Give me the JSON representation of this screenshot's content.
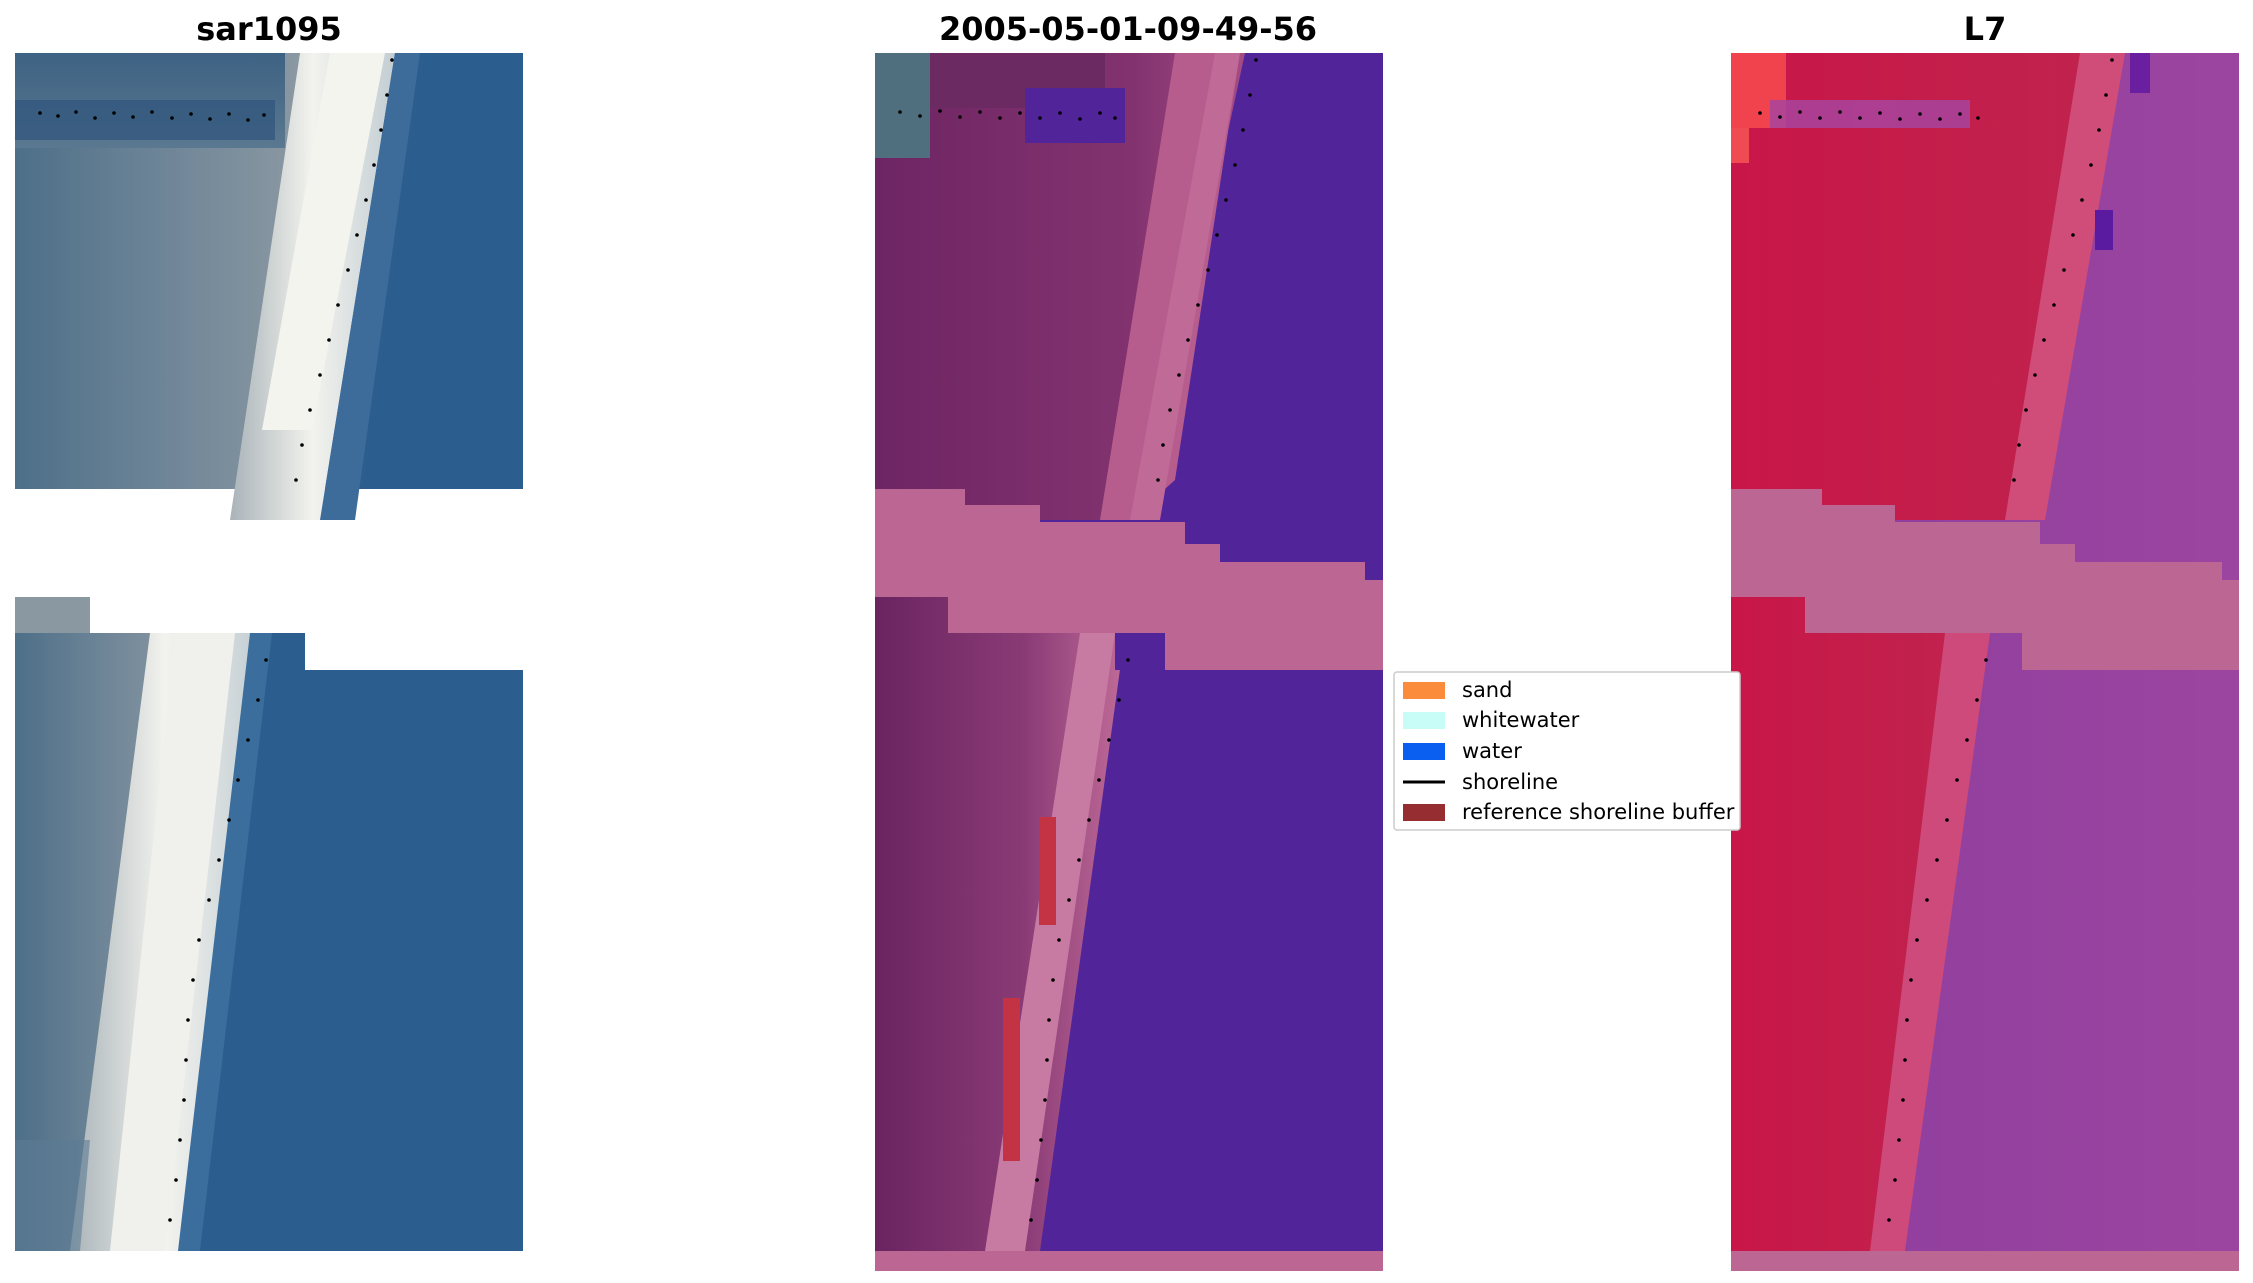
{
  "figure": {
    "panels": [
      {
        "title": "sar1095"
      },
      {
        "title": "2005-05-01-09-49-56"
      },
      {
        "title": "L7"
      }
    ],
    "legend": {
      "items": [
        {
          "label": "sand",
          "color": "#fb8c3c",
          "symbol": "patch"
        },
        {
          "label": "whitewater",
          "color": "#c8fcf6",
          "symbol": "patch"
        },
        {
          "label": "water",
          "color": "#0b5ff0",
          "symbol": "patch"
        },
        {
          "label": "shoreline",
          "color": "#000000",
          "symbol": "line"
        },
        {
          "label": "reference shoreline buffer",
          "color": "#962d30",
          "symbol": "patch"
        }
      ]
    },
    "colors": {
      "rgb_water": "#2c5d8f",
      "rgb_sand_white": "#eeeeea",
      "rgb_land": "#5c7c94",
      "class_water": "#52249a",
      "class_land": "#732868",
      "class_beach": "#b8608e",
      "class_buffer_band": "#bb6693",
      "class_red_mark": "#c43343",
      "false_color_land": "#c31444",
      "false_color_water": "#9a3e9d",
      "false_color_band": "#bb6693",
      "shoreline_dots": "#000000"
    }
  }
}
